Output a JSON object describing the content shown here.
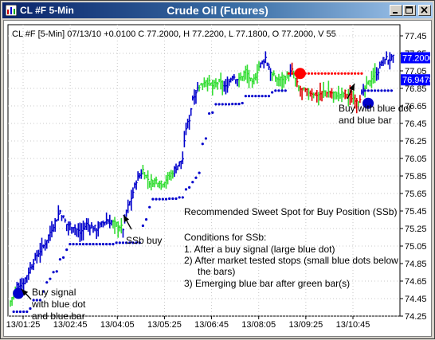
{
  "window": {
    "title_left": "CL #F 5-Min",
    "title_center": "Crude Oil (Futures)"
  },
  "icons": {
    "app": "chart-app-icon",
    "minimize": "minimize-icon",
    "maximize": "maximize-icon",
    "close": "close-icon"
  },
  "colors": {
    "up_bar": "#0000cc",
    "buy_bar": "#33dd33",
    "sell_bar": "#dd0000",
    "stop_dot": "#0000cc",
    "sell_dot": "#ff0000",
    "price_box": "#0000ff"
  },
  "chart_data": {
    "type": "bar",
    "header": "CL #F [5-Min] 07/13/10  +0.0100 C 77.2000, H 77.2200, L 77.1800, O 77.2000, V 55",
    "ylim": [
      74.25,
      77.45
    ],
    "yticks": [
      77.45,
      77.25,
      77.05,
      76.85,
      76.65,
      76.45,
      76.25,
      76.05,
      75.85,
      75.65,
      75.45,
      75.25,
      75.05,
      74.85,
      74.65,
      74.45,
      74.25
    ],
    "ytick_labels": [
      "77.45",
      "77.25",
      "77.05",
      "76.85",
      "76.65",
      "76.45",
      "76.25",
      "76.05",
      "75.85",
      "75.65",
      "75.45",
      "75.25",
      "75.05",
      "74.85",
      "74.65",
      "74.45",
      "74.25"
    ],
    "xtick_labels": [
      "13/01:25",
      "13/02:45",
      "13/04:05",
      "13/05:25",
      "13/06:45",
      "13/08:05",
      "13/09:25",
      "13/10:45"
    ],
    "price_tags": [
      {
        "label": "77.2000",
        "value": 77.2
      },
      {
        "label": "76.9478",
        "value": 76.9478
      }
    ],
    "annotations": {
      "buy_signal": [
        "Buy signal",
        "with blue dot",
        "and blue bar"
      ],
      "ssb_buy": "SSb buy",
      "buy_blue": [
        "Buy with blue dot",
        "and blue bar"
      ],
      "sweet_spot": "Recommended Sweet Spot for Buy Position (SSb)",
      "conditions_title": "Conditions for SSb:",
      "condition_1": "1. After a buy signal (large blue dot)",
      "condition_2a": "2) After market tested stops (small blue dots below",
      "condition_2b": "the bars)",
      "condition_3": "3) Emerging blue bar after green bar(s)"
    },
    "signals": [
      {
        "name": "large-blue-buy-dot",
        "bar": 2,
        "value": 74.51
      },
      {
        "name": "large-red-dot",
        "bar": 172,
        "value": 77.02
      },
      {
        "name": "large-blue-buy-dot-2",
        "bar": 213,
        "value": 76.68
      }
    ]
  }
}
